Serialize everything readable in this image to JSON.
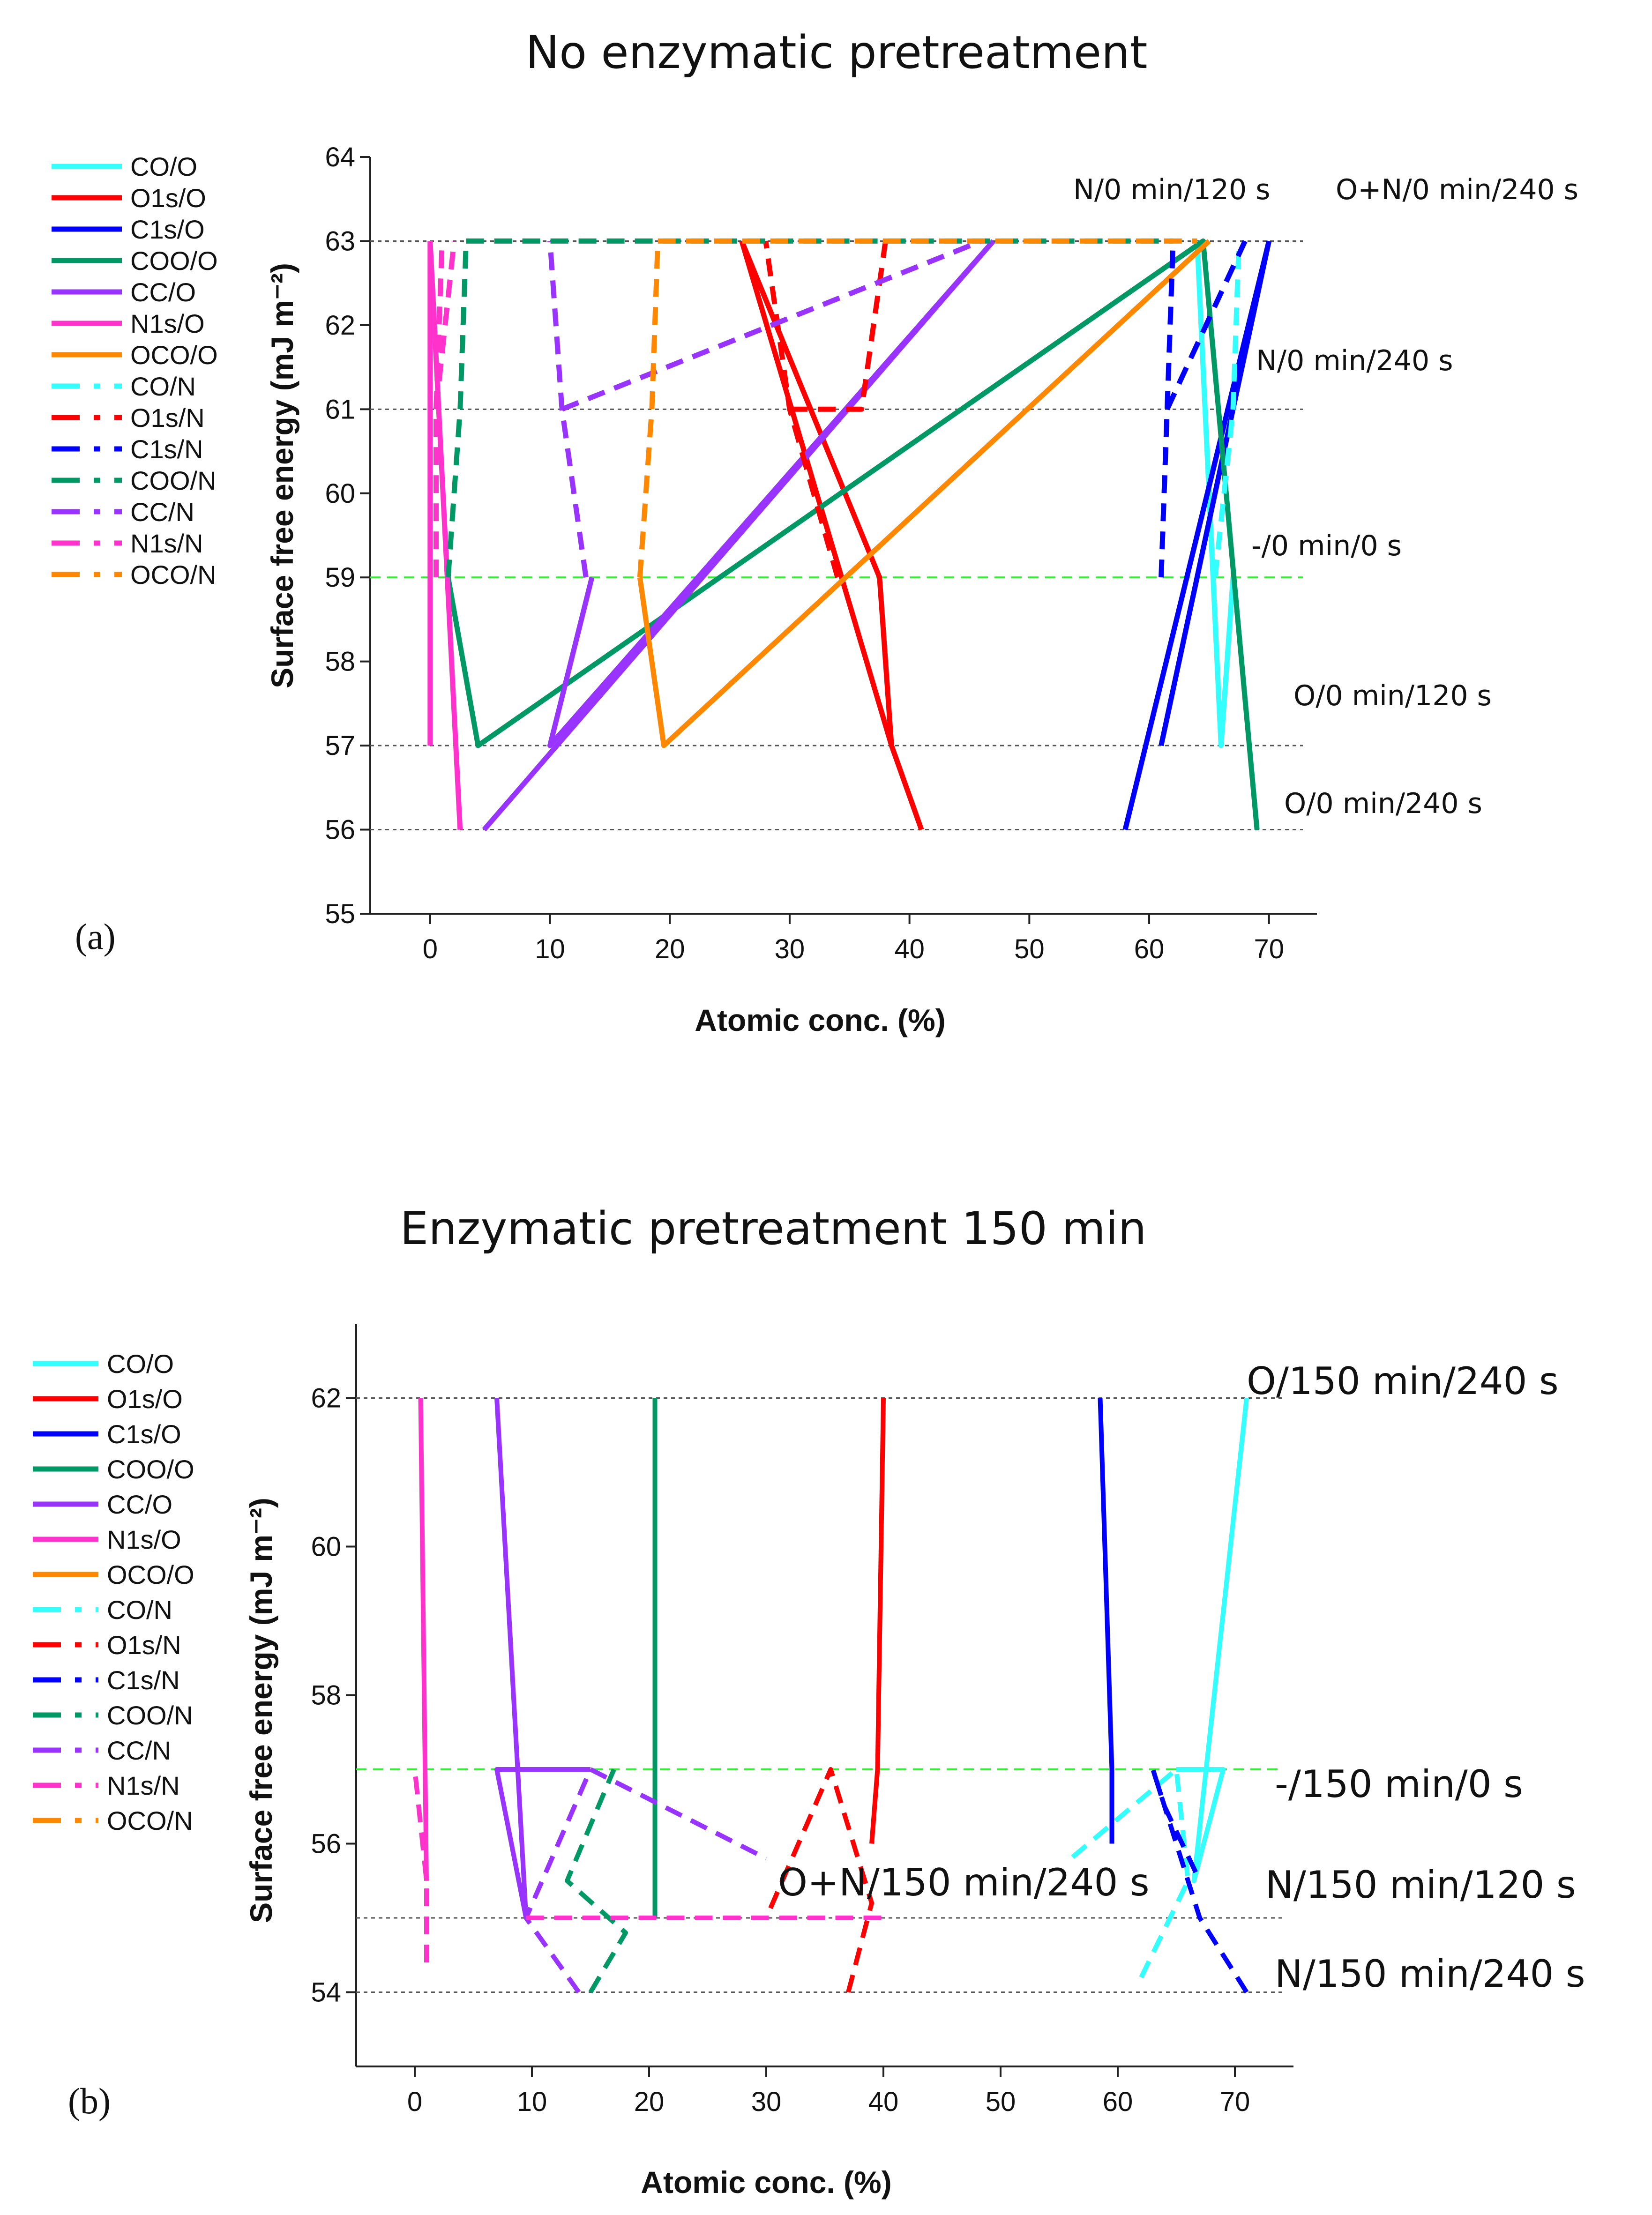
{
  "chart_data": [
    {
      "panel": "(a)",
      "type": "line",
      "title": "No enzymatic pretreatment",
      "xlabel": "Atomic conc. (%)",
      "ylabel": "Surface free energy (mJ m⁻²)",
      "xlim": [
        -5,
        74
      ],
      "ylim": [
        55,
        64
      ],
      "xticks": [
        0,
        10,
        20,
        30,
        40,
        50,
        60,
        70
      ],
      "yticks": [
        55,
        56,
        57,
        58,
        59,
        60,
        61,
        62,
        63,
        64
      ],
      "legend_position": "left",
      "legend": [
        {
          "name": "CO/O",
          "color": "#33FFFF",
          "style": "solid"
        },
        {
          "name": "O1s/O",
          "color": "#FF0000",
          "style": "solid"
        },
        {
          "name": "C1s/O",
          "color": "#0000FF",
          "style": "solid"
        },
        {
          "name": "COO/O",
          "color": "#009966",
          "style": "solid"
        },
        {
          "name": "CC/O",
          "color": "#9933FF",
          "style": "solid"
        },
        {
          "name": "N1s/O",
          "color": "#FF33CC",
          "style": "solid"
        },
        {
          "name": "OCO/O",
          "color": "#FF8800",
          "style": "solid"
        },
        {
          "name": "CO/N",
          "color": "#33FFFF",
          "style": "dashed"
        },
        {
          "name": "O1s/N",
          "color": "#FF0000",
          "style": "dashed"
        },
        {
          "name": "C1s/N",
          "color": "#0000FF",
          "style": "dashed"
        },
        {
          "name": "COO/N",
          "color": "#009966",
          "style": "dashed"
        },
        {
          "name": "CC/N",
          "color": "#9933FF",
          "style": "dashed"
        },
        {
          "name": "N1s/N",
          "color": "#FF33CC",
          "style": "dashed"
        },
        {
          "name": "OCO/N",
          "color": "#FF8800",
          "style": "dashed"
        }
      ],
      "reference_lines": [
        {
          "y": 63,
          "style": "dotted",
          "color": "#555555"
        },
        {
          "y": 61,
          "style": "dotted",
          "color": "#555555"
        },
        {
          "y": 59,
          "style": "dashed",
          "color": "#33EE33"
        },
        {
          "y": 57,
          "style": "dotted",
          "color": "#555555"
        },
        {
          "y": 56,
          "style": "dotted",
          "color": "#555555"
        }
      ],
      "annotations": [
        {
          "text": "N/0 min/120 s",
          "y": 63,
          "color": "#111111"
        },
        {
          "text": "O+N/0 min/240 s",
          "y": 63,
          "color": "#111111"
        },
        {
          "text": "N/0 min/240 s",
          "y": 61,
          "color": "#111111"
        },
        {
          "text": "-/0 min/0 s",
          "y": 59,
          "color": "#33BB33"
        },
        {
          "text": "O/0 min/120 s",
          "y": 57,
          "color": "#111111"
        },
        {
          "text": "O/0 min/240 s",
          "y": 56,
          "color": "#111111"
        }
      ],
      "series": [
        {
          "name": "CO/O",
          "color": "#33FFFF",
          "style": "solid",
          "points": [
            [
              64,
              63
            ],
            [
              66,
              57
            ],
            [
              67,
              59
            ]
          ]
        },
        {
          "name": "O1s/O",
          "color": "#FF0000",
          "style": "solid",
          "points": [
            [
              26,
              63
            ],
            [
              38.5,
              57
            ],
            [
              41,
              56
            ]
          ]
        },
        {
          "name": "O1s/O",
          "color": "#FF0000",
          "style": "solid",
          "points": [
            [
              26,
              63
            ],
            [
              37.5,
              59
            ],
            [
              38.5,
              57
            ]
          ]
        },
        {
          "name": "C1s/O",
          "color": "#0000FF",
          "style": "solid",
          "points": [
            [
              70,
              63
            ],
            [
              61,
              57
            ]
          ]
        },
        {
          "name": "C1s/O",
          "color": "#0000FF",
          "style": "solid",
          "points": [
            [
              70,
              63
            ],
            [
              58,
              56
            ]
          ]
        },
        {
          "name": "COO/O",
          "color": "#009966",
          "style": "solid",
          "points": [
            [
              1.5,
              59
            ],
            [
              4,
              57
            ],
            [
              64.5,
              63
            ],
            [
              69,
              56
            ]
          ]
        },
        {
          "name": "CC/O",
          "color": "#9933FF",
          "style": "solid",
          "points": [
            [
              13.5,
              59
            ],
            [
              10,
              57
            ],
            [
              47,
              63
            ]
          ]
        },
        {
          "name": "CC/O",
          "color": "#9933FF",
          "style": "solid",
          "points": [
            [
              4.5,
              56
            ],
            [
              47,
              63
            ]
          ]
        },
        {
          "name": "N1s/O",
          "color": "#FF33CC",
          "style": "solid",
          "points": [
            [
              0,
              63
            ],
            [
              0,
              57
            ]
          ]
        },
        {
          "name": "N1s/O",
          "color": "#FF33CC",
          "style": "solid",
          "points": [
            [
              0,
              63
            ],
            [
              2.5,
              56
            ]
          ]
        },
        {
          "name": "OCO/O",
          "color": "#FF8800",
          "style": "solid",
          "points": [
            [
              17.5,
              59
            ],
            [
              19.5,
              57
            ],
            [
              65,
              63
            ]
          ]
        },
        {
          "name": "CO/N",
          "color": "#33FFFF",
          "style": "dashed",
          "points": [
            [
              65.5,
              59
            ],
            [
              67,
              61
            ],
            [
              67.5,
              63
            ]
          ]
        },
        {
          "name": "O1s/N",
          "color": "#FF0000",
          "style": "dashed",
          "points": [
            [
              34,
              59
            ],
            [
              30,
              61
            ],
            [
              28,
              63
            ]
          ]
        },
        {
          "name": "O1s/N",
          "color": "#FF0000",
          "style": "dashed",
          "points": [
            [
              30,
              61
            ],
            [
              36,
              61
            ],
            [
              38,
              63
            ]
          ]
        },
        {
          "name": "C1s/N",
          "color": "#0000FF",
          "style": "dashed",
          "points": [
            [
              61,
              59
            ],
            [
              61.5,
              61
            ],
            [
              62,
              63
            ]
          ]
        },
        {
          "name": "C1s/N",
          "color": "#0000FF",
          "style": "dashed",
          "points": [
            [
              61.5,
              61
            ],
            [
              68,
              63
            ]
          ]
        },
        {
          "name": "COO/N",
          "color": "#009966",
          "style": "dashed",
          "points": [
            [
              1.5,
              59
            ],
            [
              2.5,
              61
            ],
            [
              3,
              63
            ]
          ]
        },
        {
          "name": "CC/N",
          "color": "#9933FF",
          "style": "dashed",
          "points": [
            [
              13,
              59
            ],
            [
              11,
              61
            ],
            [
              10,
              63
            ]
          ]
        },
        {
          "name": "CC/N",
          "color": "#9933FF",
          "style": "dashed",
          "points": [
            [
              11,
              61
            ],
            [
              46,
              63
            ]
          ]
        },
        {
          "name": "N1s/N",
          "color": "#FF33CC",
          "style": "dashed",
          "points": [
            [
              0.5,
              59
            ],
            [
              0.5,
              61
            ],
            [
              1,
              63
            ]
          ]
        },
        {
          "name": "N1s/N",
          "color": "#FF33CC",
          "style": "dashed",
          "points": [
            [
              0.5,
              61
            ],
            [
              2,
              63
            ]
          ]
        },
        {
          "name": "OCO/N",
          "color": "#FF8800",
          "style": "dashed",
          "points": [
            [
              17.5,
              59
            ],
            [
              18.5,
              61
            ],
            [
              19,
              63
            ]
          ]
        },
        {
          "name": "COO/N",
          "color": "#009966",
          "style": "dashed",
          "points": [
            [
              3,
              63
            ],
            [
              62,
              63
            ]
          ]
        },
        {
          "name": "OCO/N",
          "color": "#FF8800",
          "style": "dashed",
          "points": [
            [
              19,
              63
            ],
            [
              64,
              63
            ]
          ]
        }
      ]
    },
    {
      "panel": "(b)",
      "type": "line",
      "title": "Enzymatic pretreatment 150 min",
      "xlabel": "Atomic conc. (%)",
      "ylabel": "Surface free energy (mJ m⁻²)",
      "xlim": [
        -5,
        75
      ],
      "ylim": [
        53,
        63
      ],
      "xticks": [
        0,
        10,
        20,
        30,
        40,
        50,
        60,
        70
      ],
      "yticks": [
        54,
        56,
        58,
        60,
        62
      ],
      "legend_position": "left",
      "legend": [
        {
          "name": "CO/O",
          "color": "#33FFFF",
          "style": "solid"
        },
        {
          "name": "O1s/O",
          "color": "#FF0000",
          "style": "solid"
        },
        {
          "name": "C1s/O",
          "color": "#0000FF",
          "style": "solid"
        },
        {
          "name": "COO/O",
          "color": "#009966",
          "style": "solid"
        },
        {
          "name": "CC/O",
          "color": "#9933FF",
          "style": "solid"
        },
        {
          "name": "N1s/O",
          "color": "#FF33CC",
          "style": "solid"
        },
        {
          "name": "OCO/O",
          "color": "#FF8800",
          "style": "solid"
        },
        {
          "name": "CO/N",
          "color": "#33FFFF",
          "style": "dashed"
        },
        {
          "name": "O1s/N",
          "color": "#FF0000",
          "style": "dashed"
        },
        {
          "name": "C1s/N",
          "color": "#0000FF",
          "style": "dashed"
        },
        {
          "name": "COO/N",
          "color": "#009966",
          "style": "dashed"
        },
        {
          "name": "CC/N",
          "color": "#9933FF",
          "style": "dashed"
        },
        {
          "name": "N1s/N",
          "color": "#FF33CC",
          "style": "dashed"
        },
        {
          "name": "OCO/N",
          "color": "#FF8800",
          "style": "dashed"
        }
      ],
      "reference_lines": [
        {
          "y": 62,
          "style": "dotted",
          "color": "#555555"
        },
        {
          "y": 57,
          "style": "dashed",
          "color": "#33EE33"
        },
        {
          "y": 55,
          "style": "dotted",
          "color": "#555555"
        },
        {
          "y": 54,
          "style": "dotted",
          "color": "#555555"
        }
      ],
      "annotations": [
        {
          "text": "O/150 min/240 s",
          "y": 62,
          "color": "#111111"
        },
        {
          "text": "-/150 min/0 s",
          "y": 57,
          "color": "#33BB33"
        },
        {
          "text": "O+N/150 min/240 s",
          "y": 55.5,
          "color": "#111111"
        },
        {
          "text": "N/150 min/120 s",
          "y": 55,
          "color": "#111111"
        },
        {
          "text": "N/150 min/240 s",
          "y": 54,
          "color": "#111111"
        }
      ],
      "series": [
        {
          "name": "CO/O",
          "color": "#33FFFF",
          "style": "solid",
          "points": [
            [
              71,
              62
            ],
            [
              66.5,
              55.5
            ],
            [
              69,
              57
            ],
            [
              65,
              57
            ]
          ]
        },
        {
          "name": "O1s/O",
          "color": "#FF0000",
          "style": "solid",
          "points": [
            [
              40,
              62
            ],
            [
              39.5,
              57
            ],
            [
              39,
              56
            ]
          ]
        },
        {
          "name": "C1s/O",
          "color": "#0000FF",
          "style": "solid",
          "points": [
            [
              58.5,
              62
            ],
            [
              59.5,
              57
            ],
            [
              59.5,
              56
            ]
          ]
        },
        {
          "name": "COO/O",
          "color": "#009966",
          "style": "solid",
          "points": [
            [
              20.5,
              62
            ],
            [
              20.5,
              57
            ],
            [
              20.5,
              55
            ]
          ]
        },
        {
          "name": "CC/O",
          "color": "#9933FF",
          "style": "solid",
          "points": [
            [
              7,
              62
            ],
            [
              9.5,
              55
            ],
            [
              7,
              57
            ],
            [
              15,
              57
            ]
          ]
        },
        {
          "name": "N1s/O",
          "color": "#FF33CC",
          "style": "solid",
          "points": [
            [
              0.5,
              62
            ],
            [
              1,
              55.5
            ]
          ]
        },
        {
          "name": "CO/N",
          "color": "#33FFFF",
          "style": "dashed",
          "points": [
            [
              62,
              54.2
            ],
            [
              66,
              55.5
            ],
            [
              65,
              57
            ],
            [
              56,
              55.8
            ]
          ]
        },
        {
          "name": "O1s/N",
          "color": "#FF0000",
          "style": "dashed",
          "points": [
            [
              37,
              54
            ],
            [
              39,
              55.2
            ],
            [
              35.5,
              57
            ],
            [
              30,
              55
            ]
          ]
        },
        {
          "name": "C1s/N",
          "color": "#0000FF",
          "style": "dashed",
          "points": [
            [
              71,
              54
            ],
            [
              67,
              55
            ],
            [
              63,
              57
            ],
            [
              64,
              56.5
            ],
            [
              67,
              55.5
            ]
          ]
        },
        {
          "name": "COO/N",
          "color": "#009966",
          "style": "dashed",
          "points": [
            [
              15,
              54
            ],
            [
              18,
              54.8
            ],
            [
              13,
              55.5
            ],
            [
              17,
              57
            ]
          ]
        },
        {
          "name": "CC/N",
          "color": "#9933FF",
          "style": "dashed",
          "points": [
            [
              14,
              54
            ],
            [
              9.5,
              55
            ],
            [
              15,
              57
            ],
            [
              30,
              55.8
            ]
          ]
        },
        {
          "name": "N1s/N",
          "color": "#FF33CC",
          "style": "dashed",
          "points": [
            [
              1,
              54.4
            ],
            [
              1,
              55.5
            ],
            [
              0,
              57
            ]
          ]
        },
        {
          "name": "N1s/N",
          "color": "#FF33CC",
          "style": "dashed",
          "points": [
            [
              9.5,
              55
            ],
            [
              40,
              55
            ]
          ]
        }
      ]
    }
  ]
}
